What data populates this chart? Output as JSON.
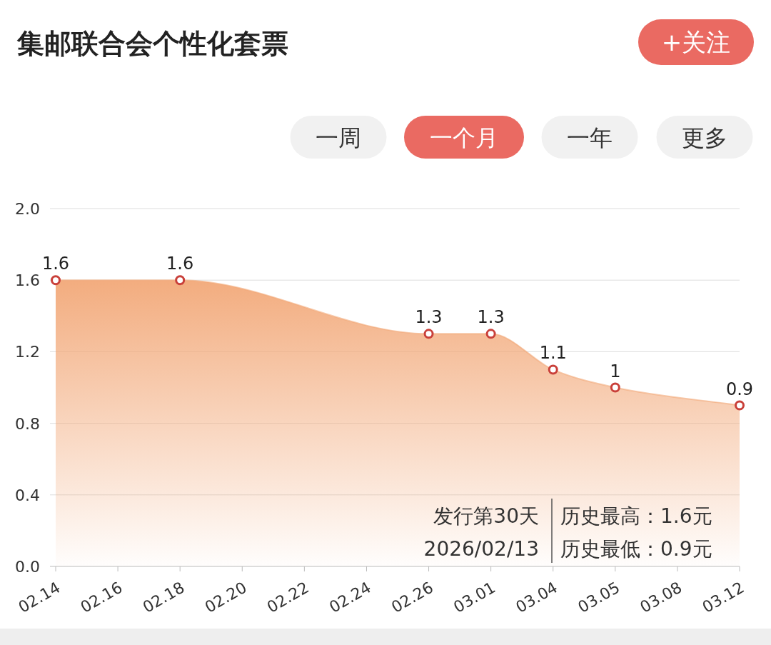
{
  "chart_data": {
    "type": "area",
    "title": "集邮联合会个性化套票",
    "annotations": [
      "+关注",
      "一周",
      "一个月",
      "一年",
      "更多",
      "发行第30天",
      "2026/02/13",
      "历史最高：1.6元",
      "历史最低：0.9元"
    ],
    "categories": [
      "02.14",
      "02.16",
      "02.18",
      "02.20",
      "02.22",
      "02.24",
      "02.26",
      "03.01",
      "03.04",
      "03.05",
      "03.08",
      "03.12"
    ],
    "series": [
      {
        "color": "#f2a878",
        "values": [
          1.6,
          null,
          1.6,
          null,
          null,
          null,
          1.3,
          1.3,
          1.1,
          1,
          null,
          0.9
        ]
      }
    ],
    "ylim": [
      0,
      2
    ],
    "yticks": [
      {
        "value": 0,
        "label": "0.0"
      },
      0.4,
      0.8,
      1.2,
      1.6,
      {
        "value": 2,
        "label": "2.0"
      }
    ],
    "grid": "y",
    "marker": "circle",
    "data_labels": true
  }
}
